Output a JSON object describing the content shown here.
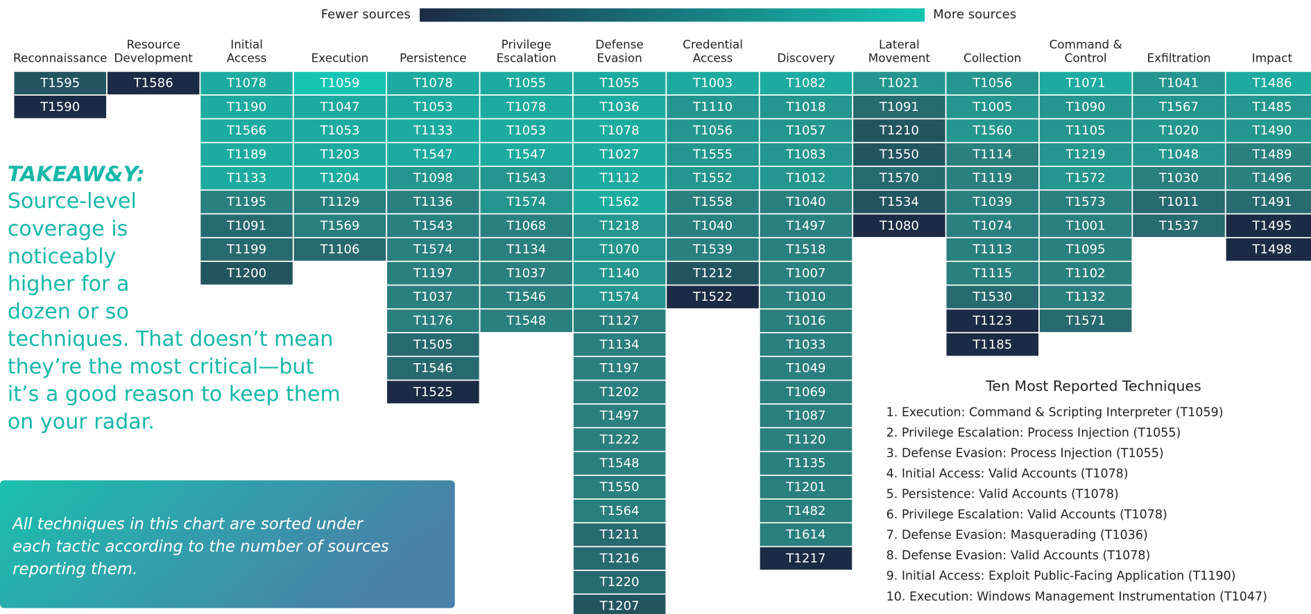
{
  "legend": {
    "low": "Fewer sources",
    "high": "More sources",
    "colors": [
      "#1c2b45",
      "#16c4b4"
    ]
  },
  "columns": [
    {
      "header": [
        "Reconnaissance"
      ],
      "techniques": [
        "T1595",
        "T1590"
      ],
      "colors": [
        "#235561",
        "#1c2b45"
      ]
    },
    {
      "header": [
        "Resource",
        "Development"
      ],
      "techniques": [
        "T1586"
      ],
      "colors": [
        "#1c2b45"
      ]
    },
    {
      "header": [
        "Initial",
        "Access"
      ],
      "techniques": [
        "T1078",
        "T1190",
        "T1566",
        "T1189",
        "T1133",
        "T1195",
        "T1091",
        "T1199",
        "T1200"
      ],
      "colors": [
        "#1eab9f",
        "#1eab9f",
        "#1eab9f",
        "#1eab9f",
        "#1eab9f",
        "#2a7f7f",
        "#276a70",
        "#276a70",
        "#235561"
      ]
    },
    {
      "header": [
        "Execution"
      ],
      "techniques": [
        "T1059",
        "T1047",
        "T1053",
        "T1203",
        "T1204",
        "T1129",
        "T1569",
        "T1106"
      ],
      "colors": [
        "#16c4b4",
        "#1eab9f",
        "#1eab9f",
        "#1eab9f",
        "#1eab9f",
        "#2a7f7f",
        "#2a7f7f",
        "#276a70"
      ]
    },
    {
      "header": [
        "Persistence"
      ],
      "techniques": [
        "T1078",
        "T1053",
        "T1133",
        "T1547",
        "T1098",
        "T1136",
        "T1543",
        "T1574",
        "T1197",
        "T1037",
        "T1176",
        "T1505",
        "T1546",
        "T1525"
      ],
      "colors": [
        "#1eab9f",
        "#1eab9f",
        "#1eab9f",
        "#1eab9f",
        "#24968f",
        "#2a7f7f",
        "#2a7f7f",
        "#2a7f7f",
        "#2a7f7f",
        "#2a7f7f",
        "#2a7f7f",
        "#276a70",
        "#276a70",
        "#1c2b45"
      ]
    },
    {
      "header": [
        "Privilege",
        "Escalation"
      ],
      "techniques": [
        "T1055",
        "T1078",
        "T1053",
        "T1547",
        "T1543",
        "T1574",
        "T1068",
        "T1134",
        "T1037",
        "T1546",
        "T1548"
      ],
      "colors": [
        "#1eab9f",
        "#1eab9f",
        "#1eab9f",
        "#1eab9f",
        "#24968f",
        "#24968f",
        "#2a7f7f",
        "#2a7f7f",
        "#2a7f7f",
        "#2a7f7f",
        "#2a7f7f"
      ]
    },
    {
      "header": [
        "Defense",
        "Evasion"
      ],
      "techniques": [
        "T1055",
        "T1036",
        "T1078",
        "T1027",
        "T1112",
        "T1562",
        "T1218",
        "T1070",
        "T1140",
        "T1574",
        "T1127",
        "T1134",
        "T1197",
        "T1202",
        "T1497",
        "T1222",
        "T1548",
        "T1550",
        "T1564",
        "T1211",
        "T1216",
        "T1220",
        "T1207"
      ],
      "colors": [
        "#1eab9f",
        "#1eab9f",
        "#1eab9f",
        "#1eab9f",
        "#1eab9f",
        "#1eab9f",
        "#24968f",
        "#24968f",
        "#24968f",
        "#24968f",
        "#2a7f7f",
        "#2a7f7f",
        "#2a7f7f",
        "#2a7f7f",
        "#2a7f7f",
        "#2a7f7f",
        "#2a7f7f",
        "#2a7f7f",
        "#2a7f7f",
        "#276a70",
        "#276a70",
        "#276a70",
        "#235561"
      ]
    },
    {
      "header": [
        "Credential",
        "Access"
      ],
      "techniques": [
        "T1003",
        "T1110",
        "T1056",
        "T1555",
        "T1552",
        "T1558",
        "T1040",
        "T1539",
        "T1212",
        "T1522"
      ],
      "colors": [
        "#1eab9f",
        "#24968f",
        "#24968f",
        "#24968f",
        "#24968f",
        "#2a7f7f",
        "#2a7f7f",
        "#2a7f7f",
        "#235561",
        "#1c2b45"
      ]
    },
    {
      "header": [
        "Discovery"
      ],
      "techniques": [
        "T1082",
        "T1018",
        "T1057",
        "T1083",
        "T1012",
        "T1040",
        "T1497",
        "T1518",
        "T1007",
        "T1010",
        "T1016",
        "T1033",
        "T1049",
        "T1069",
        "T1087",
        "T1120",
        "T1135",
        "T1201",
        "T1482",
        "T1614",
        "T1217"
      ],
      "colors": [
        "#1eab9f",
        "#24968f",
        "#24968f",
        "#24968f",
        "#24968f",
        "#2a7f7f",
        "#2a7f7f",
        "#2a7f7f",
        "#2a7f7f",
        "#2a7f7f",
        "#2a7f7f",
        "#2a7f7f",
        "#2a7f7f",
        "#2a7f7f",
        "#2a7f7f",
        "#2a7f7f",
        "#2a7f7f",
        "#2a7f7f",
        "#2a7f7f",
        "#2a7f7f",
        "#1c2b45"
      ]
    },
    {
      "header": [
        "Lateral",
        "Movement"
      ],
      "techniques": [
        "T1021",
        "T1091",
        "T1210",
        "T1550",
        "T1570",
        "T1534",
        "T1080"
      ],
      "colors": [
        "#24968f",
        "#276a70",
        "#235561",
        "#235561",
        "#276a70",
        "#235561",
        "#1c2b45"
      ]
    },
    {
      "header": [
        "Collection"
      ],
      "techniques": [
        "T1056",
        "T1005",
        "T1560",
        "T1114",
        "T1119",
        "T1039",
        "T1074",
        "T1113",
        "T1115",
        "T1530",
        "T1123",
        "T1185"
      ],
      "colors": [
        "#24968f",
        "#24968f",
        "#24968f",
        "#2a7f7f",
        "#2a7f7f",
        "#2a7f7f",
        "#2a7f7f",
        "#2a7f7f",
        "#2a7f7f",
        "#276a70",
        "#1c2b45",
        "#1c2b45"
      ]
    },
    {
      "header": [
        "Command &",
        "Control"
      ],
      "techniques": [
        "T1071",
        "T1090",
        "T1105",
        "T1219",
        "T1572",
        "T1573",
        "T1001",
        "T1095",
        "T1102",
        "T1132",
        "T1571"
      ],
      "colors": [
        "#1eab9f",
        "#24968f",
        "#24968f",
        "#24968f",
        "#24968f",
        "#2a7f7f",
        "#2a7f7f",
        "#2a7f7f",
        "#2a7f7f",
        "#2a7f7f",
        "#276a70"
      ]
    },
    {
      "header": [
        "Exfiltration"
      ],
      "techniques": [
        "T1041",
        "T1567",
        "T1020",
        "T1048",
        "T1030",
        "T1011",
        "T1537"
      ],
      "colors": [
        "#24968f",
        "#24968f",
        "#24968f",
        "#24968f",
        "#2a7f7f",
        "#276a70",
        "#276a70"
      ]
    },
    {
      "header": [
        "Impact"
      ],
      "techniques": [
        "T1486",
        "T1485",
        "T1490",
        "T1489",
        "T1496",
        "T1491",
        "T1495",
        "T1498"
      ],
      "colors": [
        "#1eab9f",
        "#24968f",
        "#24968f",
        "#2a7f7f",
        "#2a7f7f",
        "#276a70",
        "#1c2b45",
        "#1c2b45"
      ]
    }
  ],
  "takeaway": {
    "heading": "TAKEAW&Y:",
    "lines": [
      "Source-level",
      "coverage is",
      "noticeably",
      "higher for a",
      "dozen or so",
      "techniques. That doesn’t mean",
      "they’re the most critical—but",
      "it’s a good reason to keep them",
      "on your radar."
    ]
  },
  "note": {
    "lines": [
      "All techniques in this chart are sorted under",
      "each tactic according to the number of sources",
      "reporting them."
    ]
  },
  "top_ten": {
    "title": "Ten Most Reported Techniques",
    "items": [
      "1. Execution: Command & Scripting Interpreter (T1059)",
      "2. Privilege Escalation: Process Injection (T1055)",
      "3. Defense Evasion: Process Injection (T1055)",
      "4. Initial Access: Valid Accounts (T1078)",
      "5. Persistence: Valid Accounts (T1078)",
      "6. Privilege Escalation: Valid Accounts (T1078)",
      "7. Defense Evasion: Masquerading (T1036)",
      "8. Defense Evasion: Valid Accounts (T1078)",
      "9. Initial Access: Exploit Public-Facing Application (T1190)",
      "10. Execution: Windows Management Instrumentation (T1047)"
    ]
  }
}
